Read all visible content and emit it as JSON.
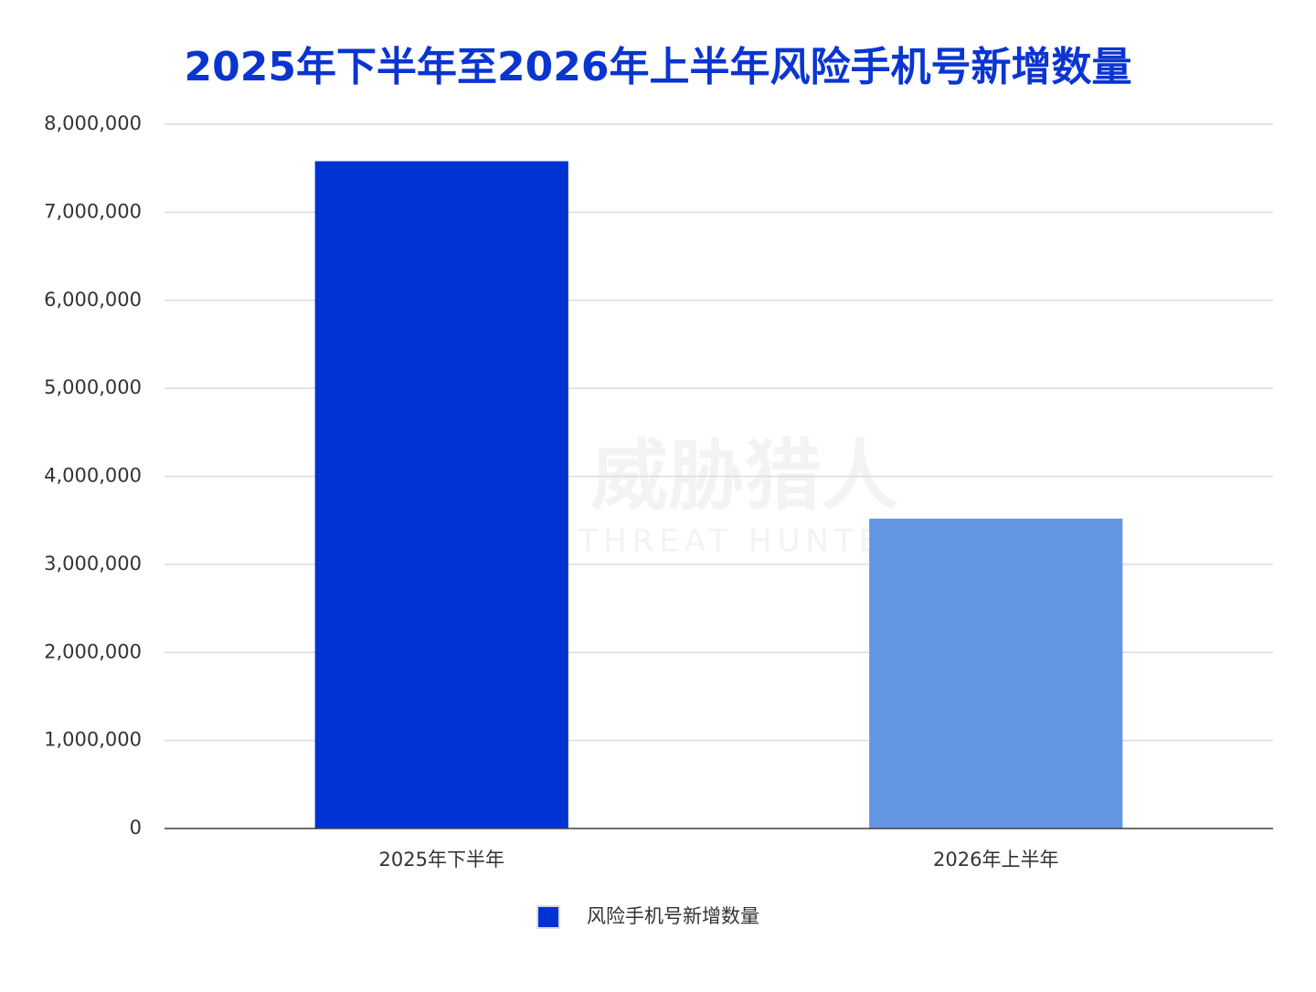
{
  "chart_data": {
    "type": "bar",
    "title": "2025年下半年至2026年上半年风险手机号新增数量",
    "categories": [
      "2025年下半年",
      "2026年上半年"
    ],
    "series": [
      {
        "name": "风险手机号新增数量",
        "color": "#0033d4",
        "point_colors": [
          "#0033d4",
          "#6495e3"
        ],
        "values": [
          7580000,
          3520000
        ]
      }
    ],
    "ylim": [
      0,
      8000000
    ],
    "yticks": [
      0,
      {
        "value": 1000000,
        "label": "1,000,000"
      },
      {
        "value": 2000000,
        "label": "2,000,000"
      },
      {
        "value": 3000000,
        "label": "3,000,000"
      },
      {
        "value": 4000000,
        "label": "4,000,000"
      },
      {
        "value": 5000000,
        "label": "5,000,000"
      },
      {
        "value": 6000000,
        "label": "6,000,000"
      },
      {
        "value": 7000000,
        "label": "7,000,000"
      },
      {
        "value": 8000000,
        "label": "8,000,000"
      }
    ],
    "grid": true,
    "legend": "bottom",
    "watermark": {
      "name": "威胁猎人",
      "subtitle": "THREAT HUNTER"
    }
  }
}
